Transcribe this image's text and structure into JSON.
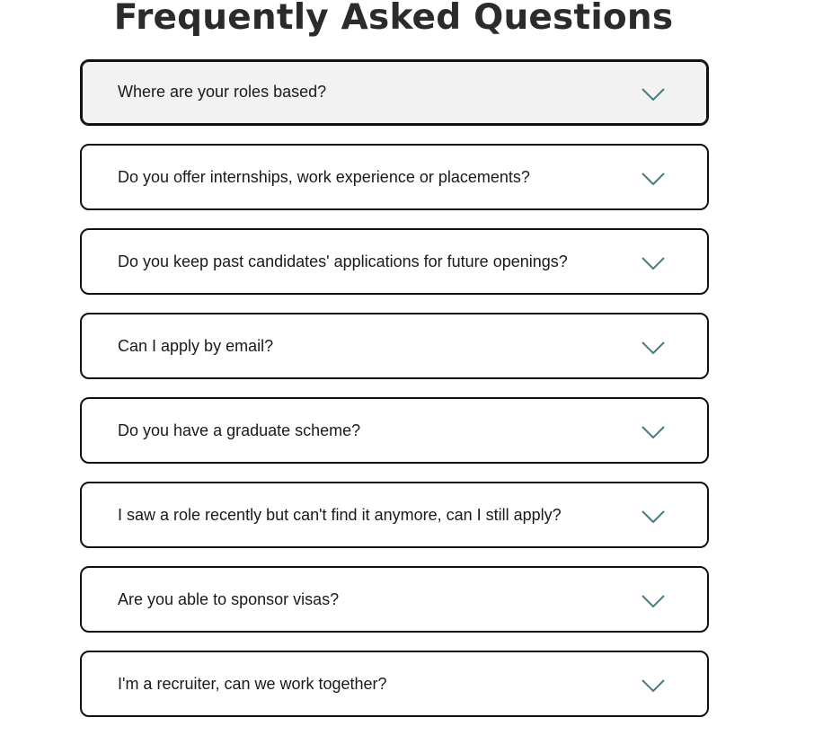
{
  "page": {
    "title": "Frequently Asked Questions"
  },
  "colors": {
    "chevron": "#4a7a7c",
    "border": "#111111",
    "active_background": "#f2f2f2"
  },
  "faq": {
    "items": [
      {
        "question": "Where are your roles based?",
        "icon": "chevron-down-icon"
      },
      {
        "question": "Do you offer internships, work experience or placements?",
        "icon": "chevron-down-icon"
      },
      {
        "question": "Do you keep past candidates' applications for future openings?",
        "icon": "chevron-down-icon"
      },
      {
        "question": "Can I apply by email?",
        "icon": "chevron-down-icon"
      },
      {
        "question": "Do you have a graduate scheme?",
        "icon": "chevron-down-icon"
      },
      {
        "question": "I saw a role recently but can't find it anymore, can I still apply?",
        "icon": "chevron-down-icon"
      },
      {
        "question": "Are you able to sponsor visas?",
        "icon": "chevron-down-icon"
      },
      {
        "question": "I'm a recruiter, can we work together?",
        "icon": "chevron-down-icon"
      }
    ]
  }
}
